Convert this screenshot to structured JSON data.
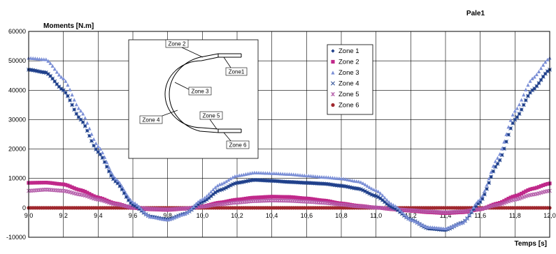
{
  "chart_data": {
    "type": "scatter",
    "title": "Pale1",
    "xlabel": "Temps [s]",
    "ylabel": "Moments [N.m]",
    "xlim": [
      9.0,
      12.0
    ],
    "ylim": [
      -10000,
      60000
    ],
    "xticks": [
      "9,0",
      "9,2",
      "9,4",
      "9,6",
      "9,8",
      "10,0",
      "10,2",
      "10,4",
      "10,6",
      "10,8",
      "11,0",
      "11,2",
      "11,4",
      "11,6",
      "11,8",
      "12,0"
    ],
    "yticks": [
      "60000",
      "50000",
      "40000",
      "30000",
      "20000",
      "10000",
      "0",
      "-10000"
    ],
    "grid": true,
    "legend_position": "top-right",
    "series": [
      {
        "name": "Zone 1",
        "marker": "diamond",
        "color": "#1f3f8a",
        "x": [
          9.0,
          9.1,
          9.2,
          9.3,
          9.4,
          9.5,
          9.6,
          9.7,
          9.8,
          9.9,
          10.0,
          10.1,
          10.2,
          10.3,
          10.4,
          10.5,
          10.6,
          10.7,
          10.8,
          10.9,
          11.0,
          11.1,
          11.2,
          11.3,
          11.4,
          11.5,
          11.6,
          11.7,
          11.8,
          11.9,
          12.0
        ],
        "y": [
          47000,
          46000,
          40000,
          30000,
          19000,
          9000,
          1000,
          -3000,
          -4000,
          -2000,
          2000,
          6000,
          8500,
          9500,
          9200,
          8800,
          8500,
          8200,
          7500,
          6500,
          4000,
          0,
          -4000,
          -7000,
          -7500,
          -5000,
          2000,
          15000,
          30000,
          40000,
          47000
        ]
      },
      {
        "name": "Zone 2",
        "marker": "square",
        "color": "#c0288a",
        "x": [
          9.0,
          9.1,
          9.2,
          9.3,
          9.4,
          9.5,
          9.6,
          9.7,
          9.8,
          9.9,
          10.0,
          10.1,
          10.2,
          10.3,
          10.4,
          10.5,
          10.6,
          10.7,
          10.8,
          10.9,
          11.0,
          11.1,
          11.2,
          11.3,
          11.4,
          11.5,
          11.6,
          11.7,
          11.8,
          11.9,
          12.0
        ],
        "y": [
          8500,
          8600,
          8000,
          6000,
          3500,
          1500,
          0,
          -500,
          -700,
          -300,
          500,
          1800,
          2800,
          3500,
          3800,
          3700,
          3200,
          2500,
          1500,
          700,
          100,
          -500,
          -1000,
          -1500,
          -1800,
          -1500,
          -500,
          1500,
          4000,
          6500,
          8300
        ]
      },
      {
        "name": "Zone 3",
        "marker": "triangle",
        "color": "#7b8fd6",
        "x": [
          9.0,
          9.1,
          9.2,
          9.3,
          9.4,
          9.5,
          9.6,
          9.7,
          9.8,
          9.9,
          10.0,
          10.1,
          10.2,
          10.3,
          10.4,
          10.5,
          10.6,
          10.7,
          10.8,
          10.9,
          11.0,
          11.1,
          11.2,
          11.3,
          11.4,
          11.5,
          11.6,
          11.7,
          11.8,
          11.9,
          12.0
        ],
        "y": [
          51000,
          50500,
          44000,
          33000,
          21000,
          10000,
          2000,
          -3000,
          -4000,
          -2000,
          3000,
          8000,
          11000,
          12000,
          11800,
          11500,
          11000,
          10500,
          10000,
          9000,
          6000,
          1000,
          -4000,
          -6500,
          -7000,
          -5000,
          3000,
          17000,
          33000,
          44000,
          51000
        ]
      },
      {
        "name": "Zone 4",
        "marker": "x",
        "color": "#2d4f96",
        "x": [
          9.0,
          9.1,
          9.2,
          9.3,
          9.4,
          9.5,
          9.6,
          9.7,
          9.8,
          9.9,
          10.0,
          10.1,
          10.2,
          10.3,
          10.4,
          10.5,
          10.6,
          10.7,
          10.8,
          10.9,
          11.0,
          11.1,
          11.2,
          11.3,
          11.4,
          11.5,
          11.6,
          11.7,
          11.8,
          11.9,
          12.0
        ],
        "y": [
          47000,
          46000,
          40000,
          30000,
          19000,
          9000,
          1000,
          -3000,
          -4000,
          -2000,
          2000,
          6000,
          8500,
          9500,
          9200,
          8800,
          8500,
          8200,
          7500,
          6500,
          4000,
          0,
          -4000,
          -7000,
          -7500,
          -5000,
          2000,
          15000,
          30000,
          40000,
          47000
        ]
      },
      {
        "name": "Zone 5",
        "marker": "star",
        "color": "#b35aa8",
        "x": [
          9.0,
          9.1,
          9.2,
          9.3,
          9.4,
          9.5,
          9.6,
          9.7,
          9.8,
          9.9,
          10.0,
          10.1,
          10.2,
          10.3,
          10.4,
          10.5,
          10.6,
          10.7,
          10.8,
          10.9,
          11.0,
          11.1,
          11.2,
          11.3,
          11.4,
          11.5,
          11.6,
          11.7,
          11.8,
          11.9,
          12.0
        ],
        "y": [
          5800,
          6200,
          5800,
          4500,
          2800,
          1200,
          200,
          -300,
          -500,
          -200,
          400,
          1200,
          1800,
          2300,
          2500,
          2400,
          2100,
          1700,
          1100,
          500,
          100,
          -400,
          -800,
          -1200,
          -1500,
          -1200,
          -400,
          1000,
          2800,
          4500,
          5800
        ]
      },
      {
        "name": "Zone 6",
        "marker": "circle",
        "color": "#a0282e",
        "x": [
          9.0,
          9.1,
          9.2,
          9.3,
          9.4,
          9.5,
          9.6,
          9.7,
          9.8,
          9.9,
          10.0,
          10.1,
          10.2,
          10.3,
          10.4,
          10.5,
          10.6,
          10.7,
          10.8,
          10.9,
          11.0,
          11.1,
          11.2,
          11.3,
          11.4,
          11.5,
          11.6,
          11.7,
          11.8,
          11.9,
          12.0
        ],
        "y": [
          0,
          0,
          0,
          0,
          0,
          0,
          0,
          0,
          0,
          0,
          0,
          0,
          0,
          0,
          0,
          0,
          0,
          0,
          0,
          0,
          0,
          0,
          0,
          0,
          0,
          0,
          0,
          0,
          0,
          0,
          0
        ]
      }
    ],
    "inset": {
      "labels": [
        "Zone 2",
        "Zone1",
        "Zone 3",
        "Zone 4",
        "Zone 5",
        "Zone 6"
      ]
    }
  }
}
